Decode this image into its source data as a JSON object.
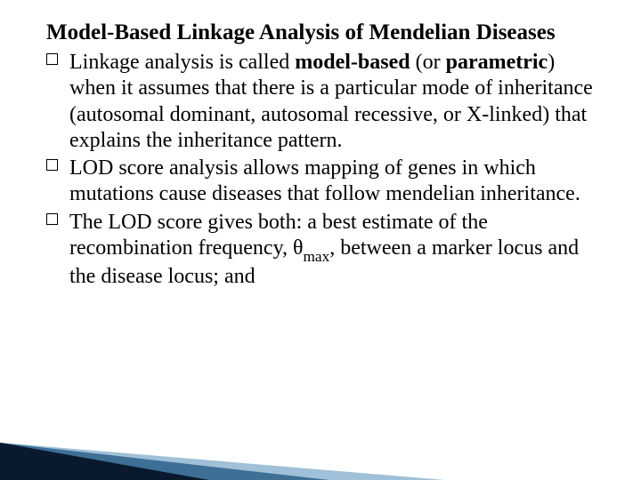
{
  "title": "Model-Based Linkage Analysis of Mendelian Diseases",
  "items": [
    {
      "pre": "Linkage analysis is called ",
      "bold1": "model-based",
      "mid": " (or ",
      "bold2": "parametric",
      "post": ") when it assumes that there is a particular mode of inheritance (autosomal dominant, autosomal recessive, or X-linked) that explains the inheritance pattern."
    },
    {
      "pre": "LOD score analysis allows mapping of genes in which mutations cause diseases that follow mendelian inheritance.",
      "bold1": "",
      "mid": "",
      "bold2": "",
      "post": ""
    },
    {
      "pre": "The LOD score gives both: a best estimate of the recombination frequency, θ",
      "sub": "max",
      "post": ", between a marker locus and the disease locus; and"
    }
  ],
  "colors": {
    "tri_dark": "#0a1a2e",
    "tri_mid": "#3f6f95",
    "tri_light": "#9fc0d8",
    "text": "#000000",
    "bg": "#ffffff"
  },
  "fontsize": {
    "title": 25,
    "body": 24
  }
}
